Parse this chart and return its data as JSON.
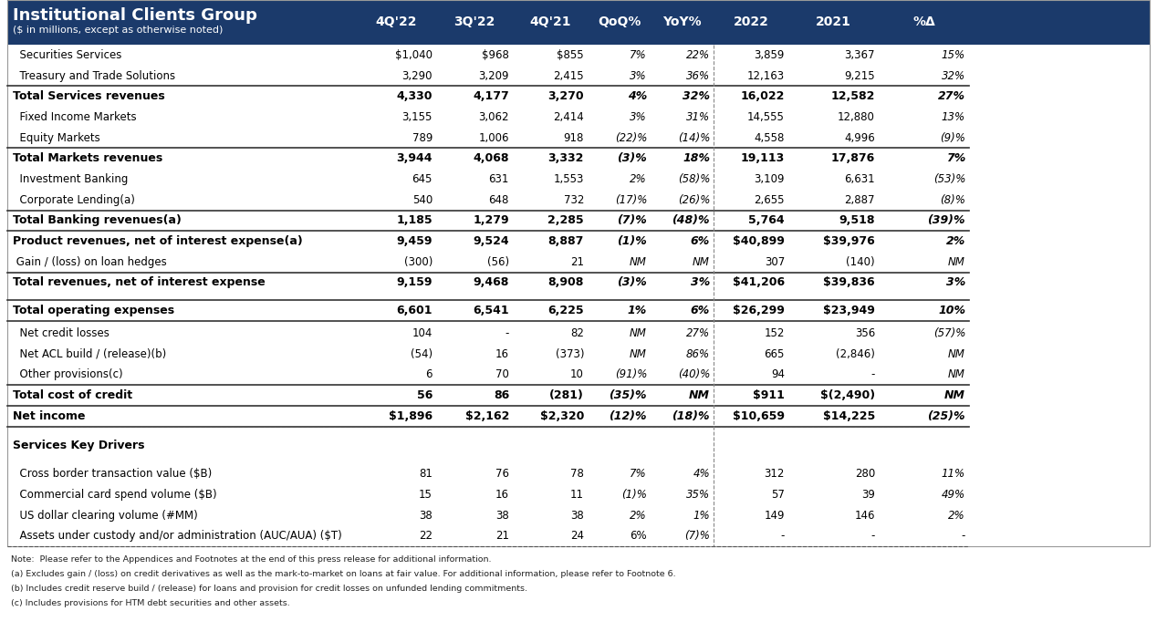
{
  "title": "Institutional Clients Group",
  "subtitle": "($ in millions, except as otherwise noted)",
  "header_bg": "#1B3A6B",
  "header_text_color": "#ffffff",
  "col_headers": [
    "4Q'22",
    "3Q'22",
    "4Q'21",
    "QoQ%",
    "YoY%",
    "2022",
    "2021",
    "%Δ"
  ],
  "rows": [
    {
      "label": "  Securities Services",
      "bold": false,
      "top_border": false,
      "bottom_border": false,
      "pct_cols": [
        3,
        4,
        7
      ],
      "nm_cols": [],
      "values": [
        "$1,040",
        "$968",
        "$855",
        "7%",
        "22%",
        "3,859",
        "3,367",
        "15%"
      ]
    },
    {
      "label": "  Treasury and Trade Solutions",
      "bold": false,
      "top_border": false,
      "bottom_border": false,
      "pct_cols": [
        3,
        4,
        7
      ],
      "nm_cols": [],
      "values": [
        "3,290",
        "3,209",
        "2,415",
        "3%",
        "36%",
        "12,163",
        "9,215",
        "32%"
      ]
    },
    {
      "label": "Total Services revenues",
      "bold": true,
      "top_border": true,
      "bottom_border": false,
      "pct_cols": [
        3,
        4,
        7
      ],
      "nm_cols": [],
      "values": [
        "4,330",
        "4,177",
        "3,270",
        "4%",
        "32%",
        "16,022",
        "12,582",
        "27%"
      ]
    },
    {
      "label": "  Fixed Income Markets",
      "bold": false,
      "top_border": false,
      "bottom_border": false,
      "pct_cols": [
        3,
        4,
        7
      ],
      "nm_cols": [],
      "values": [
        "3,155",
        "3,062",
        "2,414",
        "3%",
        "31%",
        "14,555",
        "12,880",
        "13%"
      ]
    },
    {
      "label": "  Equity Markets",
      "bold": false,
      "top_border": false,
      "bottom_border": false,
      "pct_cols": [
        3,
        4,
        7
      ],
      "nm_cols": [],
      "values": [
        "789",
        "1,006",
        "918",
        "(22)%",
        "(14)%",
        "4,558",
        "4,996",
        "(9)%"
      ]
    },
    {
      "label": "Total Markets revenues",
      "bold": true,
      "top_border": true,
      "bottom_border": false,
      "pct_cols": [
        3,
        4,
        7
      ],
      "nm_cols": [],
      "values": [
        "3,944",
        "4,068",
        "3,332",
        "(3)%",
        "18%",
        "19,113",
        "17,876",
        "7%"
      ]
    },
    {
      "label": "  Investment Banking",
      "bold": false,
      "top_border": false,
      "bottom_border": false,
      "pct_cols": [
        3,
        4,
        7
      ],
      "nm_cols": [],
      "values": [
        "645",
        "631",
        "1,553",
        "2%",
        "(58)%",
        "3,109",
        "6,631",
        "(53)%"
      ]
    },
    {
      "label": "  Corporate Lending(a)",
      "bold": false,
      "top_border": false,
      "bottom_border": false,
      "pct_cols": [
        3,
        4,
        7
      ],
      "nm_cols": [],
      "values": [
        "540",
        "648",
        "732",
        "(17)%",
        "(26)%",
        "2,655",
        "2,887",
        "(8)%"
      ]
    },
    {
      "label": "Total Banking revenues(a)",
      "bold": true,
      "top_border": true,
      "bottom_border": false,
      "pct_cols": [
        3,
        4,
        7
      ],
      "nm_cols": [],
      "values": [
        "1,185",
        "1,279",
        "2,285",
        "(7)%",
        "(48)%",
        "5,764",
        "9,518",
        "(39)%"
      ]
    },
    {
      "label": "Product revenues, net of interest expense(a)",
      "bold": true,
      "top_border": true,
      "bottom_border": false,
      "pct_cols": [
        3,
        4,
        7
      ],
      "nm_cols": [],
      "values": [
        "9,459",
        "9,524",
        "8,887",
        "(1)%",
        "6%",
        "$40,899",
        "$39,976",
        "2%"
      ]
    },
    {
      "label": " Gain / (loss) on loan hedges",
      "bold": false,
      "top_border": false,
      "bottom_border": false,
      "pct_cols": [],
      "nm_cols": [
        3,
        4,
        7
      ],
      "values": [
        "(300)",
        "(56)",
        "21",
        "NM",
        "NM",
        "307",
        "(140)",
        "NM"
      ]
    },
    {
      "label": "Total revenues, net of interest expense",
      "bold": true,
      "top_border": true,
      "bottom_border": false,
      "pct_cols": [
        3,
        4,
        7
      ],
      "nm_cols": [],
      "values": [
        "9,159",
        "9,468",
        "8,908",
        "(3)%",
        "3%",
        "$41,206",
        "$39,836",
        "3%"
      ]
    },
    {
      "label": "Total operating expenses",
      "bold": true,
      "top_border": true,
      "bottom_border": true,
      "pct_cols": [
        3,
        4,
        7
      ],
      "nm_cols": [],
      "values": [
        "6,601",
        "6,541",
        "6,225",
        "1%",
        "6%",
        "$26,299",
        "$23,949",
        "10%"
      ]
    },
    {
      "label": "  Net credit losses",
      "bold": false,
      "top_border": false,
      "bottom_border": false,
      "pct_cols": [
        4,
        7
      ],
      "nm_cols": [
        3
      ],
      "values": [
        "104",
        "-",
        "82",
        "NM",
        "27%",
        "152",
        "356",
        "(57)%"
      ]
    },
    {
      "label": "  Net ACL build / (release)(b)",
      "bold": false,
      "top_border": false,
      "bottom_border": false,
      "pct_cols": [
        4
      ],
      "nm_cols": [
        3,
        7
      ],
      "values": [
        "(54)",
        "16",
        "(373)",
        "NM",
        "86%",
        "665",
        "(2,846)",
        "NM"
      ]
    },
    {
      "label": "  Other provisions(c)",
      "bold": false,
      "top_border": false,
      "bottom_border": false,
      "pct_cols": [
        3,
        4,
        7
      ],
      "nm_cols": [],
      "values": [
        "6",
        "70",
        "10",
        "(91)%",
        "(40)%",
        "94",
        "-",
        "NM"
      ]
    },
    {
      "label": "Total cost of credit",
      "bold": true,
      "top_border": true,
      "bottom_border": false,
      "pct_cols": [
        3
      ],
      "nm_cols": [
        4,
        7
      ],
      "values": [
        "56",
        "86",
        "(281)",
        "(35)%",
        "NM",
        "$911",
        "$(2,490)",
        "NM"
      ]
    },
    {
      "label": "Net income",
      "bold": true,
      "top_border": true,
      "bottom_border": true,
      "pct_cols": [
        3,
        4,
        7
      ],
      "nm_cols": [],
      "values": [
        "$1,896",
        "$2,162",
        "$2,320",
        "(12)%",
        "(18)%",
        "$10,659",
        "$14,225",
        "(25)%"
      ]
    },
    {
      "label": "Services Key Drivers",
      "bold": true,
      "top_border": false,
      "bottom_border": false,
      "section_header": true,
      "pct_cols": [],
      "nm_cols": [],
      "values": [
        "",
        "",
        "",
        "",
        "",
        "",
        "",
        ""
      ]
    },
    {
      "label": "  Cross border transaction value ($B)",
      "bold": false,
      "top_border": false,
      "bottom_border": false,
      "pct_cols": [
        3,
        4,
        7
      ],
      "nm_cols": [],
      "values": [
        "81",
        "76",
        "78",
        "7%",
        "4%",
        "312",
        "280",
        "11%"
      ]
    },
    {
      "label": "  Commercial card spend volume ($B)",
      "bold": false,
      "top_border": false,
      "bottom_border": false,
      "pct_cols": [
        3,
        4,
        7
      ],
      "nm_cols": [],
      "values": [
        "15",
        "16",
        "11",
        "(1)%",
        "35%",
        "57",
        "39",
        "49%"
      ]
    },
    {
      "label": "  US dollar clearing volume (#MM)",
      "bold": false,
      "top_border": false,
      "bottom_border": false,
      "pct_cols": [
        3,
        4,
        7
      ],
      "nm_cols": [],
      "values": [
        "38",
        "38",
        "38",
        "2%",
        "1%",
        "149",
        "146",
        "2%"
      ]
    },
    {
      "label": "  Assets under custody and/or administration (AUC/AUA) ($T)",
      "bold": false,
      "top_border": false,
      "bottom_border": false,
      "pct_cols": [
        4
      ],
      "nm_cols": [],
      "values": [
        "22",
        "21",
        "24",
        "6%",
        "(7)%",
        "-",
        "-",
        "-"
      ]
    }
  ],
  "footnotes": [
    "Note:  Please refer to the Appendices and Footnotes at the end of this press release for additional information.",
    "(a) Excludes gain / (loss) on credit derivatives as well as the mark-to-market on loans at fair value. For additional information, please refer to Footnote 6.",
    "(b) Includes credit reserve build / (release) for loans and provision for credit losses on unfunded lending commitments.",
    "(c) Includes provisions for HTM debt securities and other assets."
  ],
  "bg_color": "#ffffff",
  "text_color": "#000000"
}
